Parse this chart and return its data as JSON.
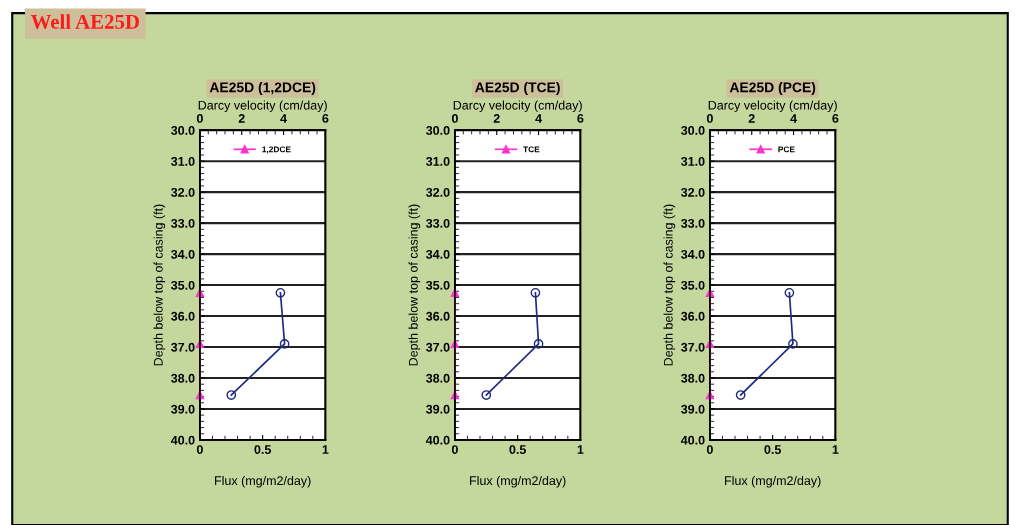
{
  "chart_data": [
    {
      "type": "other",
      "title": "Well AE25D"
    },
    {
      "type": "line",
      "title": "AE25D (1,2DCE)",
      "xlabel": "Flux (mg/m2/day)",
      "x2label": "Darcy velocity (cm/day)",
      "ylabel": "Depth below top of casing (ft)",
      "xlim": [
        0,
        1
      ],
      "xticks": [
        0,
        0.5,
        1
      ],
      "x2lim": [
        0,
        6
      ],
      "x2ticks": [
        0,
        2,
        4,
        6
      ],
      "ylim": [
        40,
        30
      ],
      "yticks": [
        {
          "value": 30,
          "label": "30.0"
        },
        {
          "value": 31,
          "label": "31.0"
        },
        {
          "value": 32,
          "label": "32.0"
        },
        {
          "value": 33,
          "label": "33.0"
        },
        {
          "value": 34,
          "label": "34.0"
        },
        {
          "value": 35,
          "label": "35.0"
        },
        {
          "value": 36,
          "label": "36.0"
        },
        {
          "value": 37,
          "label": "37.0"
        },
        {
          "value": 38,
          "label": "38.0"
        },
        {
          "value": 39,
          "label": "39.0"
        },
        {
          "value": 40,
          "label": "40.0"
        }
      ],
      "grid": "y",
      "legend": "top",
      "series": [
        {
          "name": "1,2DCE",
          "color": "#ff33cc",
          "marker": "triangle",
          "x": [
            0,
            0,
            0
          ],
          "values": [
            35.25,
            36.9,
            38.55
          ]
        },
        {
          "color": "#1f2a80",
          "marker": "circle",
          "axis": "x2",
          "x": [
            3.85,
            4.05,
            1.5
          ],
          "values": [
            35.25,
            36.9,
            38.55
          ]
        }
      ]
    },
    {
      "type": "line",
      "title": "AE25D (TCE)",
      "xlabel": "Flux (mg/m2/day)",
      "x2label": "Darcy velocity (cm/day)",
      "ylabel": "Depth below top of casing (ft)",
      "xlim": [
        0,
        1
      ],
      "xticks": [
        0,
        0.5,
        1
      ],
      "x2lim": [
        0,
        6
      ],
      "x2ticks": [
        0,
        2,
        4,
        6
      ],
      "ylim": [
        40,
        30
      ],
      "yticks": [
        {
          "value": 30,
          "label": "30.0"
        },
        {
          "value": 31,
          "label": "31.0"
        },
        {
          "value": 32,
          "label": "32.0"
        },
        {
          "value": 33,
          "label": "33.0"
        },
        {
          "value": 34,
          "label": "34.0"
        },
        {
          "value": 35,
          "label": "35.0"
        },
        {
          "value": 36,
          "label": "36.0"
        },
        {
          "value": 37,
          "label": "37.0"
        },
        {
          "value": 38,
          "label": "38.0"
        },
        {
          "value": 39,
          "label": "39.0"
        },
        {
          "value": 40,
          "label": "40.0"
        }
      ],
      "grid": "y",
      "legend": "top",
      "series": [
        {
          "name": "TCE",
          "color": "#ff33cc",
          "marker": "triangle",
          "x": [
            0,
            0,
            0
          ],
          "values": [
            35.25,
            36.9,
            38.55
          ]
        },
        {
          "color": "#1f2a80",
          "marker": "circle",
          "axis": "x2",
          "x": [
            3.85,
            4.0,
            1.5
          ],
          "values": [
            35.25,
            36.9,
            38.55
          ]
        }
      ]
    },
    {
      "type": "line",
      "title": "AE25D (PCE)",
      "xlabel": "Flux (mg/m2/day)",
      "x2label": "Darcy velocity (cm/day)",
      "ylabel": "Depth below top of casing (ft)",
      "xlim": [
        0,
        1
      ],
      "xticks": [
        0,
        0.5,
        1
      ],
      "x2lim": [
        0,
        6
      ],
      "x2ticks": [
        0,
        2,
        4,
        6
      ],
      "ylim": [
        40,
        30
      ],
      "yticks": [
        {
          "value": 30,
          "label": "30.0"
        },
        {
          "value": 31,
          "label": "31.0"
        },
        {
          "value": 32,
          "label": "32.0"
        },
        {
          "value": 33,
          "label": "33.0"
        },
        {
          "value": 34,
          "label": "34.0"
        },
        {
          "value": 35,
          "label": "35.0"
        },
        {
          "value": 36,
          "label": "36.0"
        },
        {
          "value": 37,
          "label": "37.0"
        },
        {
          "value": 38,
          "label": "38.0"
        },
        {
          "value": 39,
          "label": "39.0"
        },
        {
          "value": 40,
          "label": "40.0"
        }
      ],
      "grid": "y",
      "legend": "top",
      "series": [
        {
          "name": "PCE",
          "color": "#ff33cc",
          "marker": "triangle",
          "x": [
            0,
            0,
            0
          ],
          "values": [
            35.25,
            36.9,
            38.55
          ]
        },
        {
          "color": "#1f2a80",
          "marker": "circle",
          "axis": "x2",
          "x": [
            3.8,
            3.97,
            1.47
          ],
          "values": [
            35.25,
            36.9,
            38.55
          ]
        }
      ]
    }
  ]
}
